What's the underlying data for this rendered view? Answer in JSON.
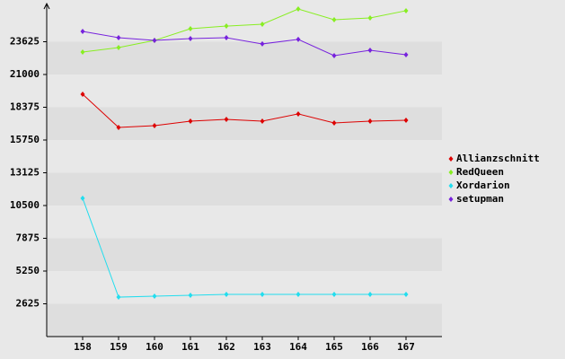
{
  "chart_data": {
    "type": "line",
    "categories": [
      "158",
      "159",
      "160",
      "161",
      "162",
      "163",
      "164",
      "165",
      "166",
      "167"
    ],
    "series": [
      {
        "name": "Allianzschnitt",
        "color": "#dd0000",
        "values": [
          19420,
          16760,
          16900,
          17260,
          17400,
          17260,
          17840,
          17120,
          17260,
          17330
        ]
      },
      {
        "name": "RedQueen",
        "color": "#88ee22",
        "values": [
          22800,
          23160,
          23730,
          24670,
          24880,
          25030,
          26250,
          25390,
          25530,
          26110
        ]
      },
      {
        "name": "Xordarion",
        "color": "#22ddee",
        "values": [
          11080,
          3160,
          3240,
          3310,
          3380,
          3380,
          3380,
          3380,
          3380,
          3380
        ]
      },
      {
        "name": "setupman",
        "color": "#7722dd",
        "values": [
          24450,
          23950,
          23730,
          23880,
          23950,
          23450,
          23810,
          22510,
          22940,
          22580
        ]
      }
    ],
    "ylim": [
      0,
      26250
    ],
    "yticks": [
      2625,
      5250,
      7875,
      10500,
      13125,
      15750,
      18375,
      21000,
      23625
    ]
  }
}
